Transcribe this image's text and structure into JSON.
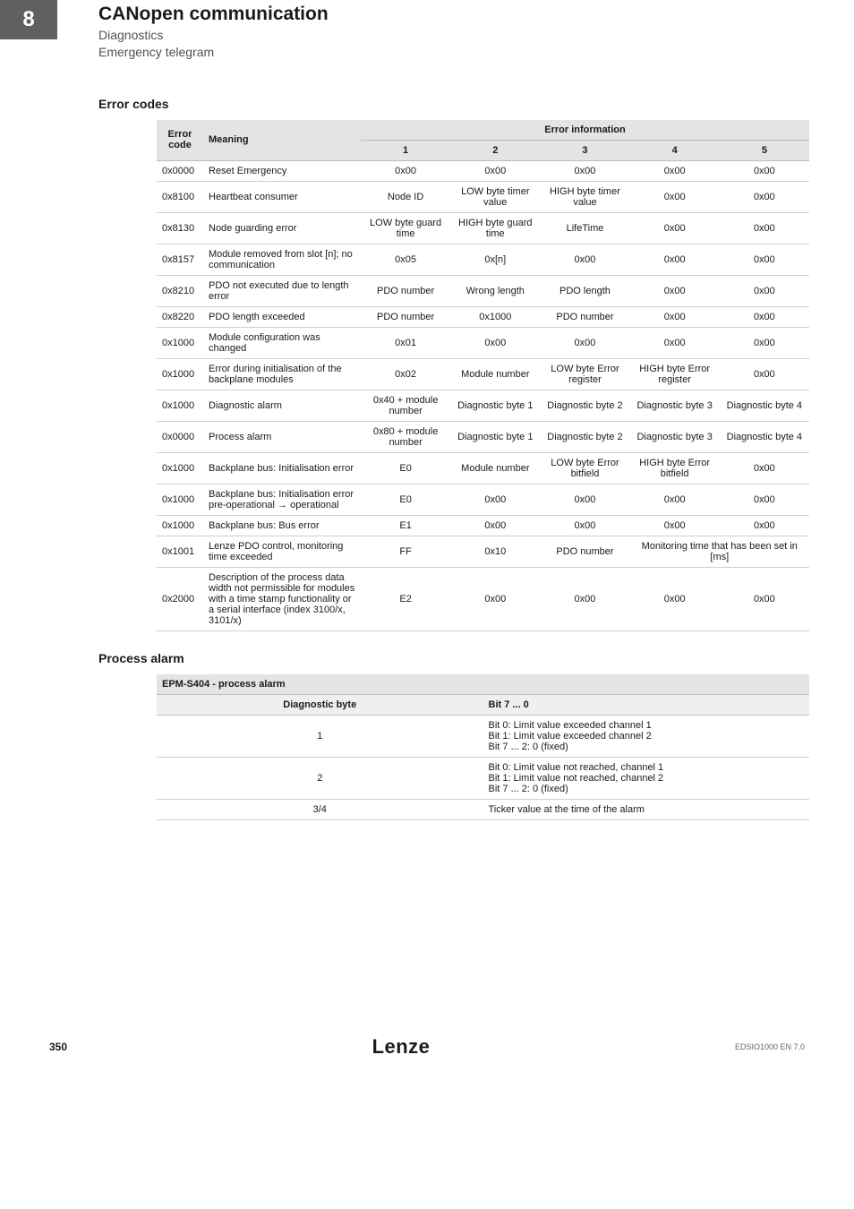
{
  "header": {
    "page_number": "8",
    "title": "CANopen communication",
    "subtitle1": "Diagnostics",
    "subtitle2": "Emergency telegram"
  },
  "section1": {
    "heading": "Error codes",
    "col_error_code": "Error code",
    "col_meaning": "Meaning",
    "col_error_info": "Error information",
    "info_cols": [
      "1",
      "2",
      "3",
      "4",
      "5"
    ],
    "rows": [
      {
        "code": "0x0000",
        "meaning": "Reset Emergency",
        "c": [
          "0x00",
          "0x00",
          "0x00",
          "0x00",
          "0x00"
        ]
      },
      {
        "code": "0x8100",
        "meaning": "Heartbeat consumer",
        "c": [
          "Node ID",
          "LOW byte timer value",
          "HIGH byte timer value",
          "0x00",
          "0x00"
        ]
      },
      {
        "code": "0x8130",
        "meaning": "Node guarding error",
        "c": [
          "LOW byte guard time",
          "HIGH byte guard time",
          "LifeTime",
          "0x00",
          "0x00"
        ]
      },
      {
        "code": "0x8157",
        "meaning": "Module removed from slot [n]; no communication",
        "c": [
          "0x05",
          "0x[n]",
          "0x00",
          "0x00",
          "0x00"
        ]
      },
      {
        "code": "0x8210",
        "meaning": "PDO not executed due to length error",
        "c": [
          "PDO number",
          "Wrong length",
          "PDO length",
          "0x00",
          "0x00"
        ]
      },
      {
        "code": "0x8220",
        "meaning": "PDO length exceeded",
        "c": [
          "PDO number",
          "0x1000",
          "PDO number",
          "0x00",
          "0x00"
        ]
      },
      {
        "code": "0x1000",
        "meaning": "Module configuration was changed",
        "c": [
          "0x01",
          "0x00",
          "0x00",
          "0x00",
          "0x00"
        ]
      },
      {
        "code": "0x1000",
        "meaning": "Error during initialisation of the backplane modules",
        "c": [
          "0x02",
          "Module number",
          "LOW byte Error register",
          "HIGH byte Error register",
          "0x00"
        ]
      },
      {
        "code": "0x1000",
        "meaning": "Diagnostic alarm",
        "c": [
          "0x40 + module number",
          "Diagnostic byte 1",
          "Diagnostic byte 2",
          "Diagnostic byte 3",
          "Diagnostic byte 4"
        ]
      },
      {
        "code": "0x0000",
        "meaning": "Process alarm",
        "c": [
          "0x80 + module number",
          "Diagnostic byte 1",
          "Diagnostic byte 2",
          "Diagnostic byte 3",
          "Diagnostic byte 4"
        ]
      },
      {
        "code": "0x1000",
        "meaning": "Backplane bus: Initialisation error",
        "c": [
          "E0",
          "Module number",
          "LOW byte Error bitfield",
          "HIGH byte Error bitfield",
          "0x00"
        ]
      },
      {
        "code": "0x1000",
        "meaning": "Backplane bus: Initialisation error pre-operational → operational",
        "c": [
          "E0",
          "0x00",
          "0x00",
          "0x00",
          "0x00"
        ]
      },
      {
        "code": "0x1000",
        "meaning": "Backplane bus: Bus error",
        "c": [
          "E1",
          "0x00",
          "0x00",
          "0x00",
          "0x00"
        ]
      },
      {
        "code": "0x1001",
        "meaning": "Lenze PDO control, monitoring time exceeded",
        "c": [
          "FF",
          "0x10",
          "PDO number"
        ],
        "merge45": "Monitoring time that has been set in [ms]"
      },
      {
        "code": "0x2000",
        "meaning": "Description of the process data width not permissible for modules with a time stamp functionality or a serial interface (index 3100/x, 3101/x)",
        "c": [
          "E2",
          "0x00",
          "0x00",
          "0x00",
          "0x00"
        ]
      }
    ]
  },
  "section2": {
    "heading": "Process alarm",
    "table_title": "EPM-S404 - process alarm",
    "col_diag": "Diagnostic byte",
    "col_bit": "Bit 7 ... 0",
    "rows": [
      {
        "b": "1",
        "v": "Bit 0: Limit value exceeded channel 1\nBit 1: Limit value exceeded channel 2\nBit 7 ... 2: 0 (fixed)"
      },
      {
        "b": "2",
        "v": "Bit 0: Limit value not reached, channel 1\nBit 1: Limit value not reached, channel 2\nBit 7 ... 2: 0 (fixed)"
      },
      {
        "b": "3/4",
        "v": "Ticker value at the time of the alarm"
      }
    ]
  },
  "footer": {
    "page": "350",
    "logo": "Lenze",
    "code": "EDSIO1000 EN 7.0"
  }
}
